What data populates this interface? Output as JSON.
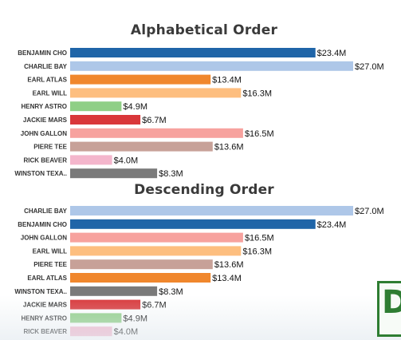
{
  "colors": {
    "BENJAMIN CHO": "#1f65a8",
    "CHARLIE BAY": "#aec7e8",
    "EARL ATLAS": "#f0872d",
    "EARL WILL": "#fdbe7f",
    "HENRY ASTRO": "#8fcf86",
    "JACKIE MARS": "#d9373a",
    "JOHN GALLON": "#f7a29e",
    "PIERE TEE": "#c7a198",
    "RICK BEAVER": "#f4b6cc",
    "WINSTON TEXA..": "#7a7a7a"
  },
  "chart_data": [
    {
      "type": "bar",
      "orientation": "horizontal",
      "title": "Alphabetical Order",
      "categories": [
        "BENJAMIN CHO",
        "CHARLIE BAY",
        "EARL ATLAS",
        "EARL WILL",
        "HENRY ASTRO",
        "JACKIE MARS",
        "JOHN GALLON",
        "PIERE TEE",
        "RICK BEAVER",
        "WINSTON TEXA.."
      ],
      "values": [
        23.4,
        27.0,
        13.4,
        16.3,
        4.9,
        6.7,
        16.5,
        13.6,
        4.0,
        8.3
      ],
      "value_labels": [
        "$23.4M",
        "$27.0M",
        "$13.4M",
        "$16.3M",
        "$4.9M",
        "$6.7M",
        "$16.5M",
        "$13.6M",
        "$4.0M",
        "$8.3M"
      ],
      "xlim": [
        0,
        27.0
      ],
      "grid": false
    },
    {
      "type": "bar",
      "orientation": "horizontal",
      "title": "Descending Order",
      "categories": [
        "CHARLIE BAY",
        "BENJAMIN CHO",
        "JOHN GALLON",
        "EARL WILL",
        "PIERE TEE",
        "EARL ATLAS",
        "WINSTON TEXA..",
        "JACKIE MARS",
        "HENRY ASTRO",
        "RICK BEAVER"
      ],
      "values": [
        27.0,
        23.4,
        16.5,
        16.3,
        13.6,
        13.4,
        8.3,
        6.7,
        4.9,
        4.0
      ],
      "value_labels": [
        "$27.0M",
        "$23.4M",
        "$16.5M",
        "$16.3M",
        "$13.6M",
        "$13.4M",
        "$8.3M",
        "$6.7M",
        "$4.9M",
        "$4.0M"
      ],
      "xlim": [
        0,
        27.0
      ],
      "grid": false
    }
  ],
  "logo": {
    "text": "D"
  }
}
